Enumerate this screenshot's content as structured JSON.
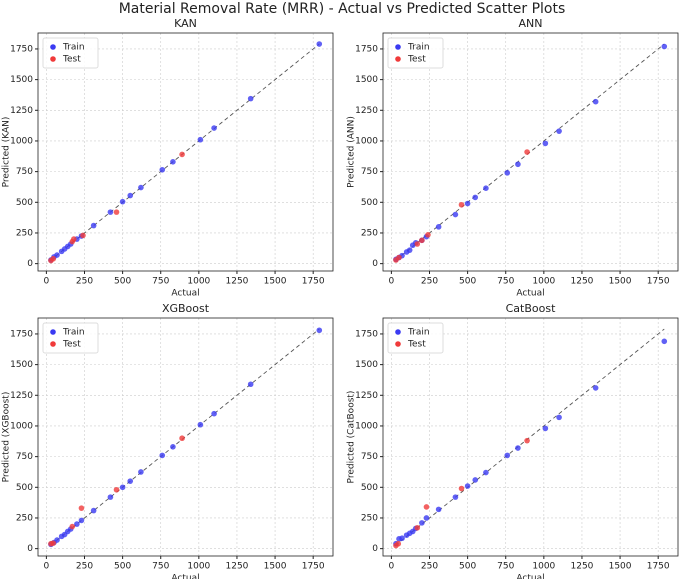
{
  "title": "Material Removal Rate (MRR) - Actual vs Predicted Scatter Plots",
  "chart_data": [
    {
      "type": "scatter",
      "title": "KAN",
      "x_label": "Actual",
      "y_label": "Predicted (KAN)",
      "xlim": [
        -55,
        1880
      ],
      "ylim": [
        -60,
        1880
      ],
      "xticks": [
        0,
        250,
        500,
        750,
        1000,
        1250,
        1500,
        1750
      ],
      "yticks": [
        0,
        250,
        500,
        750,
        1000,
        1250,
        1500,
        1750
      ],
      "grid": true,
      "legend": "upper left",
      "identity_line": true,
      "series": [
        {
          "name": "Train",
          "color": "#3a3af2",
          "x": [
            30,
            50,
            70,
            100,
            120,
            140,
            160,
            200,
            230,
            310,
            420,
            500,
            550,
            620,
            760,
            830,
            1010,
            1100,
            1340,
            1790
          ],
          "values": [
            30,
            55,
            70,
            100,
            120,
            140,
            160,
            200,
            225,
            310,
            420,
            505,
            555,
            620,
            765,
            830,
            1010,
            1105,
            1345,
            1790
          ]
        },
        {
          "name": "Test",
          "color": "#f03a3a",
          "x": [
            30,
            45,
            170,
            180,
            240,
            460,
            890
          ],
          "values": [
            25,
            40,
            180,
            200,
            230,
            420,
            890
          ]
        }
      ]
    },
    {
      "type": "scatter",
      "title": "ANN",
      "x_label": "Actual",
      "y_label": "Predicted (ANN)",
      "xlim": [
        -55,
        1880
      ],
      "ylim": [
        -60,
        1880
      ],
      "xticks": [
        0,
        250,
        500,
        750,
        1000,
        1250,
        1500,
        1750
      ],
      "yticks": [
        0,
        250,
        500,
        750,
        1000,
        1250,
        1500,
        1750
      ],
      "grid": true,
      "legend": "upper left",
      "identity_line": true,
      "series": [
        {
          "name": "Train",
          "color": "#3a3af2",
          "x": [
            30,
            50,
            70,
            100,
            120,
            140,
            160,
            200,
            230,
            310,
            420,
            500,
            550,
            620,
            760,
            830,
            1010,
            1100,
            1340,
            1790
          ],
          "values": [
            35,
            50,
            65,
            95,
            110,
            150,
            170,
            190,
            220,
            300,
            400,
            490,
            540,
            615,
            740,
            810,
            980,
            1080,
            1320,
            1770
          ]
        },
        {
          "name": "Test",
          "color": "#f03a3a",
          "x": [
            30,
            50,
            170,
            200,
            240,
            460,
            890
          ],
          "values": [
            30,
            50,
            160,
            190,
            235,
            480,
            910
          ]
        }
      ]
    },
    {
      "type": "scatter",
      "title": "XGBoost",
      "x_label": "Actual",
      "y_label": "Predicted (XGBoost)",
      "xlim": [
        -55,
        1880
      ],
      "ylim": [
        -60,
        1880
      ],
      "xticks": [
        0,
        250,
        500,
        750,
        1000,
        1250,
        1500,
        1750
      ],
      "yticks": [
        0,
        250,
        500,
        750,
        1000,
        1250,
        1500,
        1750
      ],
      "grid": true,
      "legend": "upper left",
      "identity_line": true,
      "series": [
        {
          "name": "Train",
          "color": "#3a3af2",
          "x": [
            30,
            50,
            70,
            100,
            120,
            140,
            160,
            200,
            230,
            310,
            420,
            500,
            550,
            620,
            760,
            830,
            1010,
            1100,
            1340,
            1790
          ],
          "values": [
            35,
            50,
            70,
            100,
            115,
            140,
            160,
            200,
            230,
            310,
            420,
            500,
            550,
            625,
            760,
            830,
            1010,
            1100,
            1340,
            1780
          ]
        },
        {
          "name": "Test",
          "color": "#f03a3a",
          "x": [
            30,
            45,
            170,
            230,
            460,
            890
          ],
          "values": [
            40,
            45,
            180,
            330,
            480,
            900
          ]
        }
      ]
    },
    {
      "type": "scatter",
      "title": "CatBoost",
      "x_label": "Actual",
      "y_label": "Predicted (CatBoost)",
      "xlim": [
        -55,
        1880
      ],
      "ylim": [
        -60,
        1880
      ],
      "xticks": [
        0,
        250,
        500,
        750,
        1000,
        1250,
        1500,
        1750
      ],
      "yticks": [
        0,
        250,
        500,
        750,
        1000,
        1250,
        1500,
        1750
      ],
      "grid": true,
      "legend": "upper left",
      "identity_line": true,
      "series": [
        {
          "name": "Train",
          "color": "#3a3af2",
          "x": [
            30,
            50,
            70,
            100,
            120,
            140,
            160,
            200,
            230,
            310,
            420,
            500,
            550,
            620,
            760,
            830,
            1010,
            1100,
            1340,
            1790
          ],
          "values": [
            40,
            80,
            85,
            110,
            125,
            140,
            165,
            210,
            250,
            320,
            420,
            510,
            560,
            620,
            760,
            820,
            980,
            1070,
            1310,
            1690
          ]
        },
        {
          "name": "Test",
          "color": "#f03a3a",
          "x": [
            30,
            45,
            170,
            230,
            460,
            890
          ],
          "values": [
            25,
            40,
            170,
            340,
            490,
            880
          ]
        }
      ]
    }
  ]
}
